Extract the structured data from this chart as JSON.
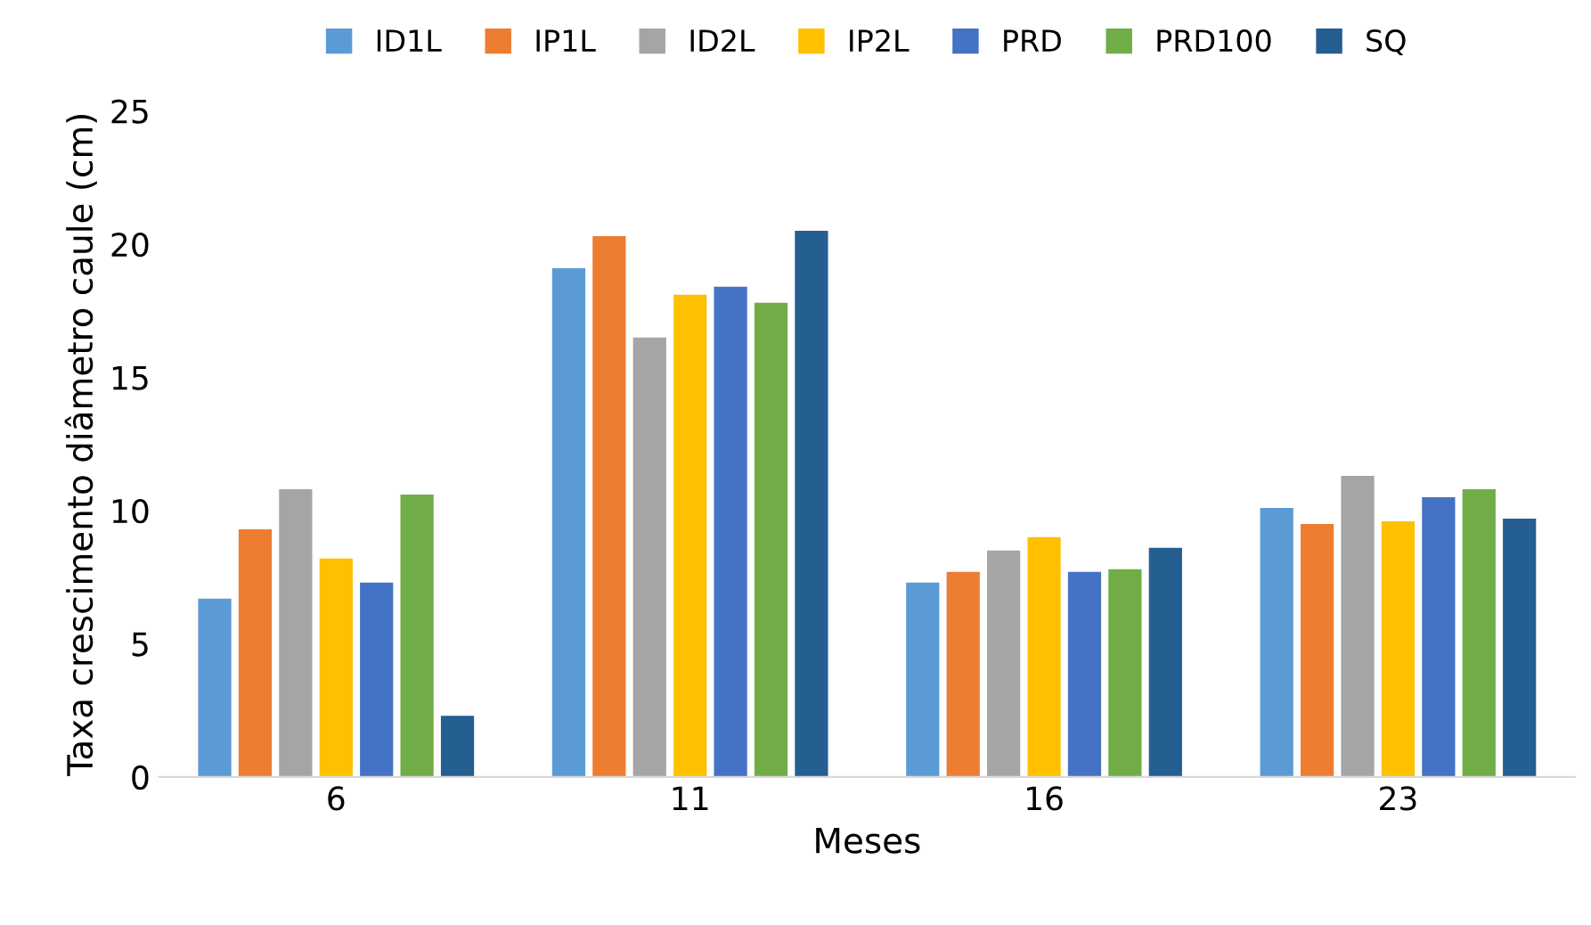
{
  "chart_data": {
    "type": "bar",
    "xlabel": "Meses",
    "ylabel": "Taxa crescimento diâmetro caule (cm)",
    "categories": [
      "6",
      "11",
      "16",
      "23"
    ],
    "series": [
      {
        "name": "ID1L",
        "color": "#5b9bd5",
        "values": [
          6.7,
          19.1,
          7.3,
          10.1
        ]
      },
      {
        "name": "IP1L",
        "color": "#ed7d31",
        "values": [
          9.3,
          20.3,
          7.7,
          9.5
        ]
      },
      {
        "name": "ID2L",
        "color": "#a5a5a5",
        "values": [
          10.8,
          16.5,
          8.5,
          11.3
        ]
      },
      {
        "name": "IP2L",
        "color": "#ffc000",
        "values": [
          8.2,
          18.1,
          9.0,
          9.6
        ]
      },
      {
        "name": "PRD",
        "color": "#4472c4",
        "values": [
          7.3,
          18.4,
          7.7,
          10.5
        ]
      },
      {
        "name": "PRD100",
        "color": "#70ad47",
        "values": [
          10.6,
          17.8,
          7.8,
          10.8
        ]
      },
      {
        "name": "SQ",
        "color": "#255e91",
        "values": [
          2.3,
          20.5,
          8.6,
          9.7
        ]
      }
    ],
    "ylim": [
      0,
      25
    ],
    "yticks": [
      0,
      5,
      10,
      15,
      20,
      25
    ],
    "grid": false,
    "legend": "top"
  }
}
